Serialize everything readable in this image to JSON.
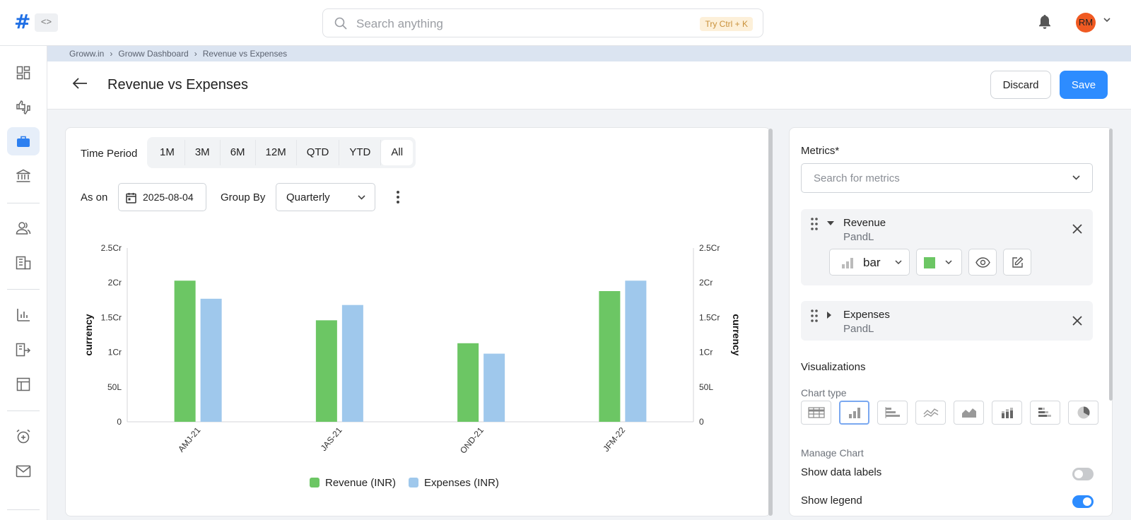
{
  "topbar": {
    "logo": "#",
    "collapse_icon": "<>",
    "search_placeholder": "Search anything",
    "search_hint": "Try Ctrl + K",
    "avatar_initials": "RM"
  },
  "breadcrumb": [
    "Groww.in",
    "Groww Dashboard",
    "Revenue vs Expenses"
  ],
  "breadcrumb_sep": "›",
  "header": {
    "title": "Revenue vs Expenses",
    "discard_label": "Discard",
    "save_label": "Save"
  },
  "filters": {
    "time_period_label": "Time Period",
    "periods": [
      "1M",
      "3M",
      "6M",
      "12M",
      "QTD",
      "YTD",
      "All"
    ],
    "selected_period": "All",
    "as_on_label": "As on",
    "as_on_date": "2025-08-04",
    "group_by_label": "Group By",
    "group_by_value": "Quarterly"
  },
  "chart_data": {
    "type": "bar",
    "categories": [
      "AMJ-21",
      "JAS-21",
      "OND-21",
      "JFM-22"
    ],
    "series": [
      {
        "name": "Revenue (INR)",
        "values": [
          20300000,
          14600000,
          11300000,
          18800000
        ],
        "color": "#6cc664"
      },
      {
        "name": "Expenses (INR)",
        "values": [
          17700000,
          16800000,
          9800000,
          20300000
        ],
        "color": "#9fc8ec"
      }
    ],
    "ylabel": "currency",
    "y2label": "currency",
    "ylim": [
      0,
      25000000
    ],
    "yticks": [
      0,
      5000000,
      10000000,
      15000000,
      20000000,
      25000000
    ],
    "ytick_labels": [
      "0",
      "50L",
      "1Cr",
      "1.5Cr",
      "2Cr",
      "2.5Cr"
    ],
    "grid": false,
    "legend_position": "bottom"
  },
  "metrics": {
    "heading": "Metrics*",
    "search_placeholder": "Search for metrics",
    "items": [
      {
        "name": "Revenue",
        "source": "PandL",
        "chart_type": "bar",
        "color": "#6cc664",
        "expanded": true
      },
      {
        "name": "Expenses",
        "source": "PandL",
        "expanded": false
      }
    ]
  },
  "visualizations": {
    "heading": "Visualizations",
    "chart_type_label": "Chart type",
    "chart_types": [
      "table-icon",
      "bar-chart-icon",
      "horizontal-bar-icon",
      "line-chart-icon",
      "area-chart-icon",
      "stacked-bar-icon",
      "stacked-horizontal-bar-icon",
      "pie-chart-icon"
    ],
    "selected_chart_type": "bar-chart-icon",
    "manage_label": "Manage Chart",
    "options": [
      {
        "label": "Show data labels",
        "on": false
      },
      {
        "label": "Show legend",
        "on": true
      }
    ]
  },
  "colors": {
    "accent": "#2d8cff",
    "active_nav": "#e6eef9"
  }
}
